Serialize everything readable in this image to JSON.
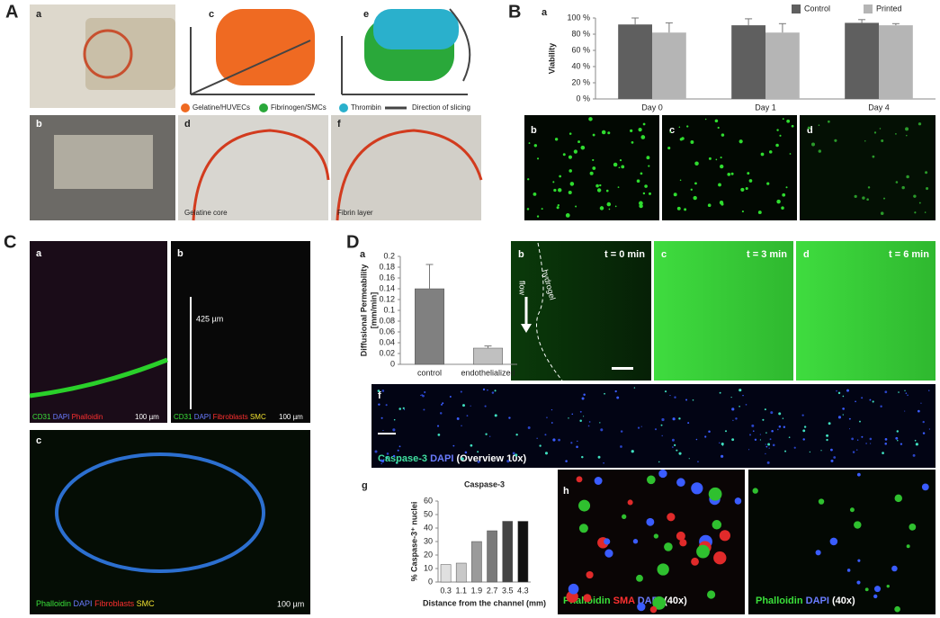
{
  "figure": {
    "panels": [
      "A",
      "B",
      "C",
      "D"
    ],
    "sublabels": {
      "A": [
        "a",
        "b",
        "c",
        "d",
        "e",
        "f"
      ],
      "B": [
        "a",
        "b",
        "c",
        "d"
      ],
      "C": [
        "a",
        "b",
        "c"
      ],
      "D": [
        "a",
        "b",
        "c",
        "d",
        "e",
        "f",
        "g",
        "h"
      ]
    },
    "A_texts": {
      "legend": [
        "Gelatine/HUVECs",
        "Fibrinogen/SMCs",
        "Thrombin",
        "Direction of slicing"
      ],
      "d_caption": "Gelatine core",
      "f_caption": "Fibrin layer"
    },
    "C_texts": {
      "a": [
        "CD31",
        "DAPI",
        "Phalloidin"
      ],
      "b": [
        "CD31",
        "DAPI",
        "Fibroblasts",
        "SMC"
      ],
      "c": [
        "Phalloidin",
        "DAPI",
        "Fibroblasts",
        "SMC"
      ],
      "scale_small": "100 µm",
      "scale_c": "100 µm",
      "depth": "425 µm"
    },
    "D_texts": {
      "flow": "flow",
      "hydrogel": "hydrogel",
      "times": [
        "t = 0 min",
        "t = 3 min",
        "t = 6 min"
      ],
      "e": [
        "Caspase-3",
        "DAPI",
        "(Overview 10x)"
      ],
      "g": [
        "Phalloidin",
        "SMA",
        "DAPI",
        "(40x)"
      ],
      "h": [
        "Phalloidin",
        "DAPI",
        "(40x)"
      ]
    }
  },
  "chart_data": [
    {
      "type": "bar",
      "ylabel": "Viability",
      "categories": [
        "Day 0",
        "Day 1",
        "Day 4"
      ],
      "series": [
        {
          "name": "Control",
          "color": "#5f5f5f",
          "values": [
            92,
            91,
            94
          ],
          "errors": [
            8,
            8,
            4
          ]
        },
        {
          "name": "Printed",
          "color": "#b5b5b5",
          "values": [
            82,
            82,
            91
          ],
          "errors": [
            12,
            11,
            2
          ]
        }
      ],
      "ylim": [
        0,
        100
      ],
      "yticks": [
        {
          "value": 0,
          "label": "0 %"
        },
        {
          "value": 20,
          "label": "20 %"
        },
        {
          "value": 40,
          "label": "40 %"
        },
        {
          "value": 60,
          "label": "60 %"
        },
        {
          "value": 80,
          "label": "80 %"
        },
        {
          "value": 100,
          "label": "100 %"
        }
      ],
      "legend": "top-right"
    },
    {
      "type": "bar",
      "ylabel": [
        "Diffusional Permeability",
        "[mm/min]"
      ],
      "categories": [
        "control",
        "endothelialized"
      ],
      "values": [
        0.14,
        0.03
      ],
      "errors": [
        0.045,
        0.004
      ],
      "colors": [
        "#808080",
        "#c0c0c0"
      ],
      "ylim": [
        0,
        0.2
      ],
      "yticks": [
        0,
        0.02,
        0.04,
        0.06,
        0.08,
        0.1,
        0.12,
        0.14,
        0.16,
        0.18,
        0.2
      ]
    },
    {
      "type": "bar",
      "title": "Caspase-3",
      "xlabel": "Distance from the channel (mm)",
      "ylabel": "% Caspase-3⁺ nuclei",
      "categories": [
        "0.3",
        "1.1",
        "1.9",
        "2.7",
        "3.5",
        "4.3"
      ],
      "values": [
        13,
        14,
        30,
        38,
        45,
        45
      ],
      "colors": [
        "#e0e0e0",
        "#c8c8c8",
        "#9a9a9a",
        "#7a7a7a",
        "#444444",
        "#111111"
      ],
      "ylim": [
        0,
        60
      ],
      "yticks": [
        0,
        10,
        20,
        30,
        40,
        50,
        60
      ]
    }
  ]
}
